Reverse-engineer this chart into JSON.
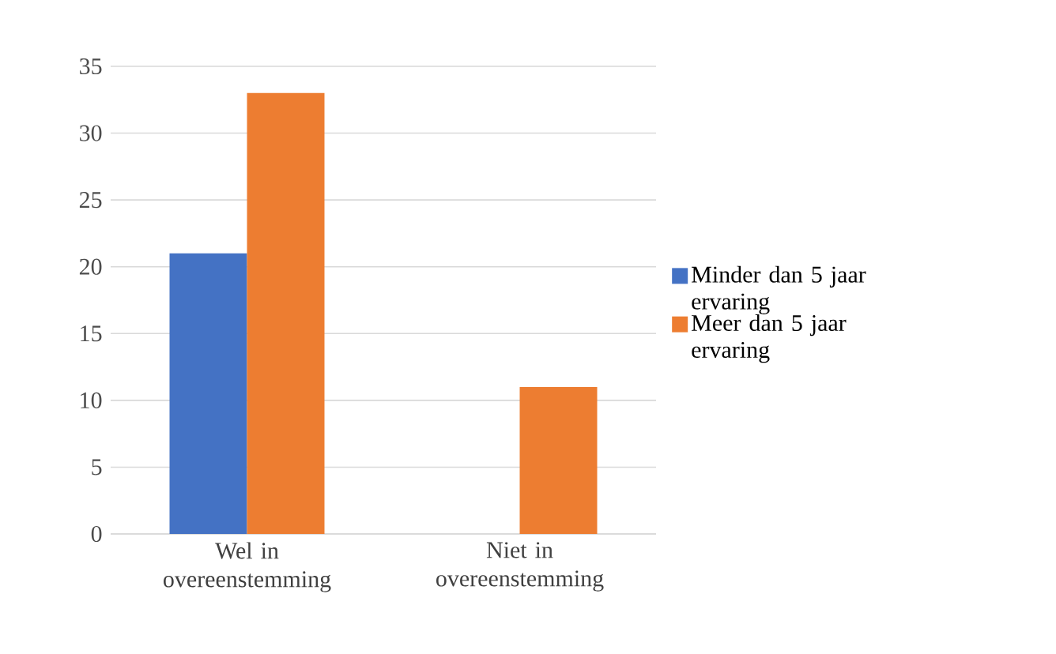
{
  "chart_data": {
    "type": "bar",
    "categories": [
      "Wel in overeenstemming",
      "Niet in overeenstemming"
    ],
    "series": [
      {
        "name": "Minder dan 5 jaar ervaring",
        "color": "#4472c4",
        "values": [
          21,
          0
        ]
      },
      {
        "name": "Meer dan 5 jaar ervaring",
        "color": "#ed7d31",
        "values": [
          33,
          11
        ]
      }
    ],
    "ylim": [
      0,
      35
    ],
    "yticks": [
      0,
      5,
      10,
      15,
      20,
      25,
      30,
      35
    ],
    "grid": "y",
    "legend": "right"
  }
}
